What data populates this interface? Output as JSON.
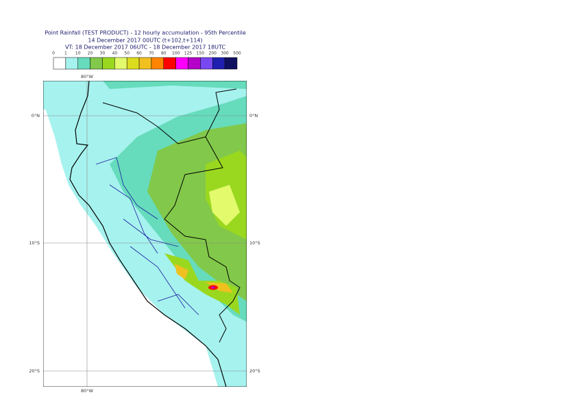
{
  "header": {
    "lines": [
      "Point Rainfall (TEST PRODUCT) - 12 hourly accumulation - 95th Percentile",
      "14 December 2017 00UTC (t+102,t+114)",
      "VT: 18 December 2017 06UTC - 18 December 2017 18UTC"
    ]
  },
  "legend": {
    "labels": [
      "0",
      "1",
      "10",
      "20",
      "30",
      "40",
      "50",
      "60",
      "70",
      "80",
      "100",
      "125",
      "150",
      "200",
      "300",
      "500"
    ],
    "colors": [
      "#ffffff",
      "#a6f2ee",
      "#66dcbc",
      "#82c84a",
      "#9ad820",
      "#e2fa6c",
      "#dcdc1e",
      "#f0c020",
      "#ff8400",
      "#ff0000",
      "#ff00ff",
      "#b400c8",
      "#7848f0",
      "#2020b0",
      "#101060"
    ]
  },
  "map": {
    "lon_labels": [
      "80°W",
      "80°W"
    ],
    "lat_labels": [
      "0°N",
      "0°N",
      "10°S",
      "10°S",
      "20°S",
      "20°S"
    ]
  }
}
